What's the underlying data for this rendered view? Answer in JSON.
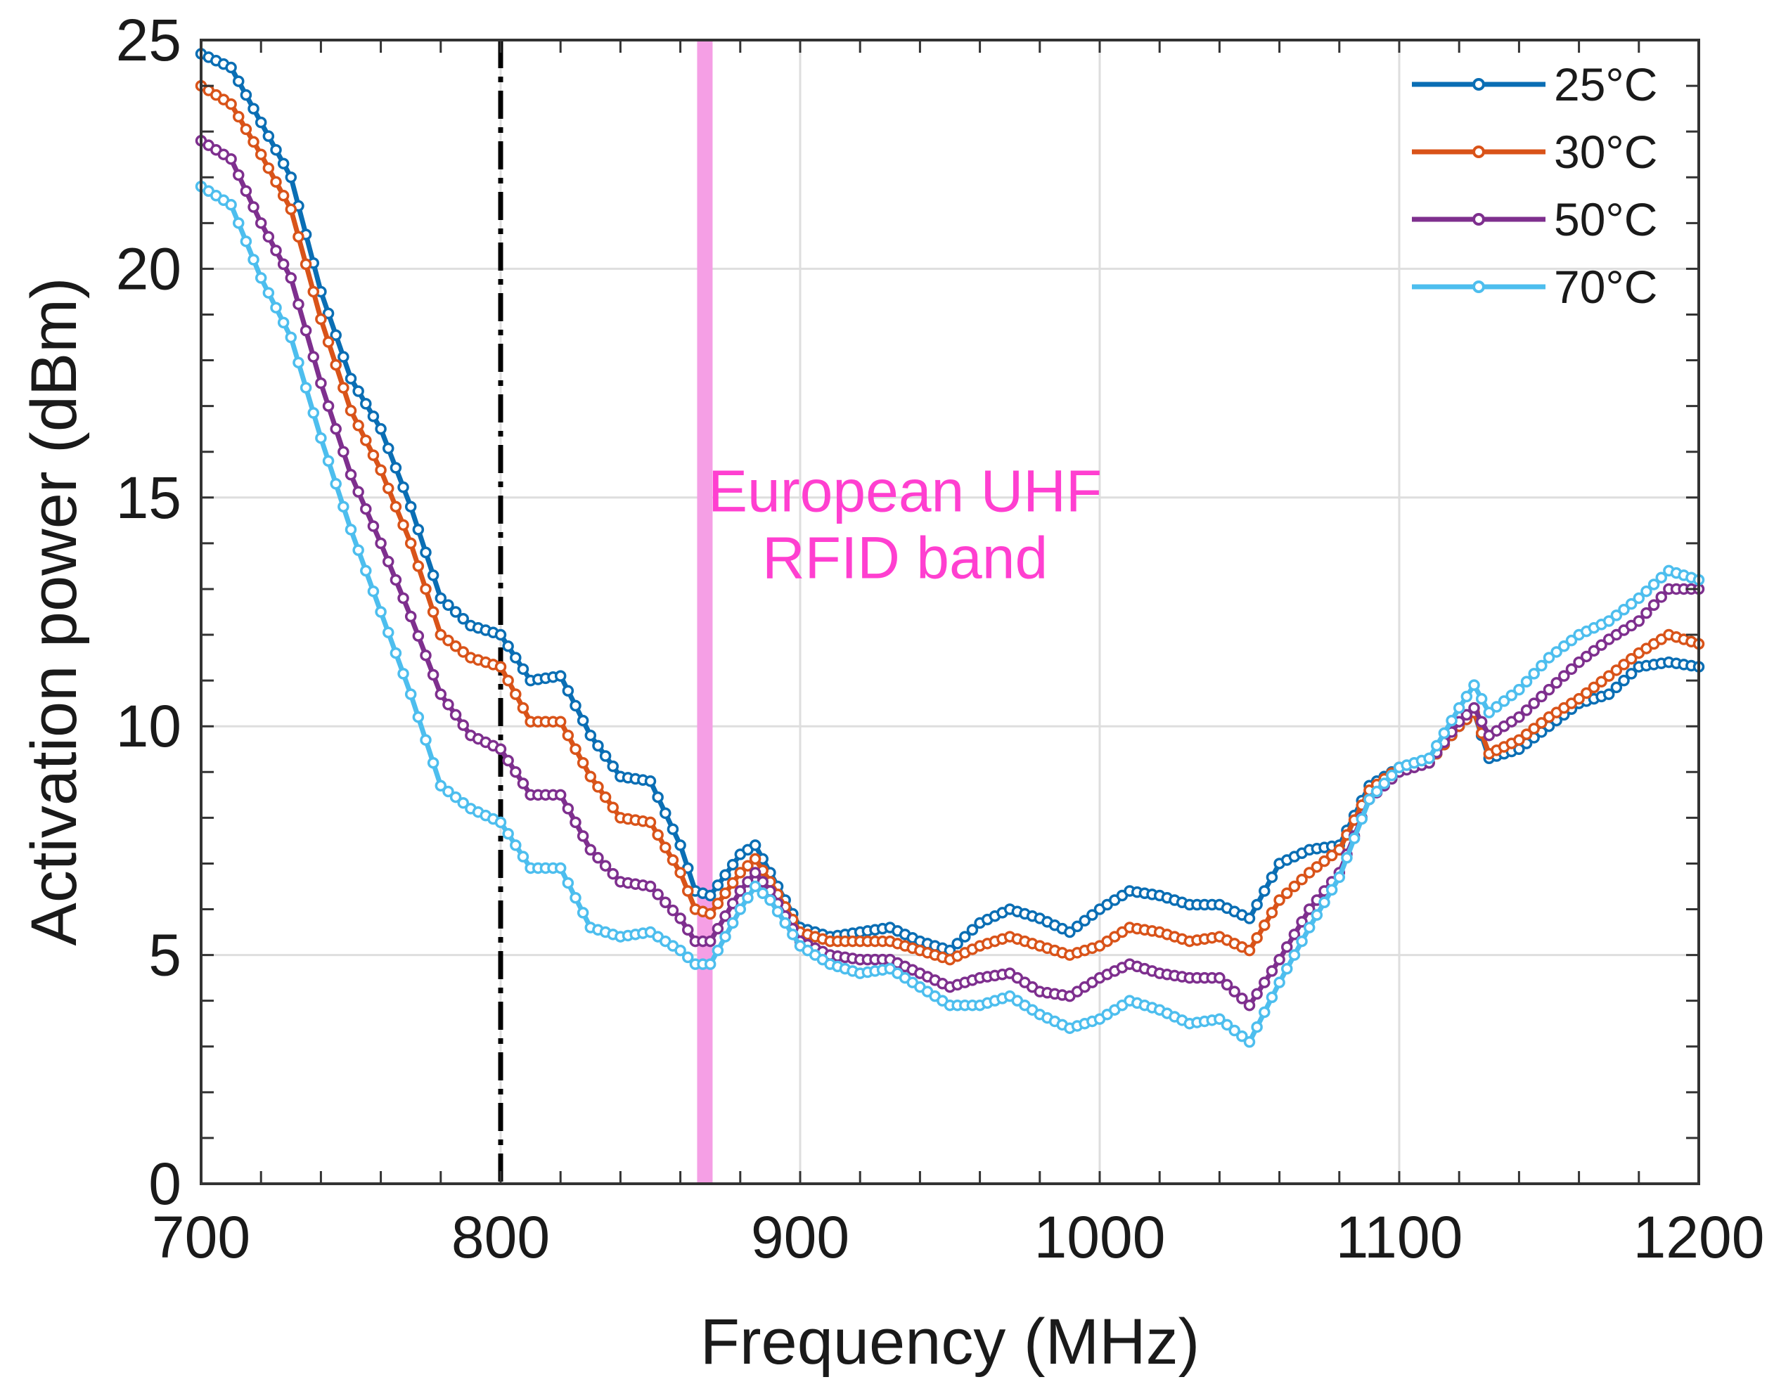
{
  "chart_data": {
    "type": "line",
    "title": "",
    "xlabel": "Frequency (MHz)",
    "ylabel": "Activation power (dBm)",
    "xlim": [
      700,
      1200
    ],
    "ylim": [
      0,
      25
    ],
    "xticks": [
      700,
      800,
      900,
      1000,
      1100,
      1200
    ],
    "yticks": [
      0,
      5,
      10,
      15,
      20,
      25
    ],
    "grid": true,
    "legend_position": "top-right",
    "reference_line": {
      "x": 800,
      "style": "dash-dot",
      "color": "#000000"
    },
    "band": {
      "x_start": 865.6,
      "x_end": 867.6,
      "color": "#f59fe5"
    },
    "annotation": {
      "lines": [
        "European UHF",
        "RFID band"
      ],
      "color": "#ff3fd0",
      "x": 935,
      "y": 14.7
    },
    "series": [
      {
        "name": "25°C",
        "color": "#0a6eb4",
        "x": [
          700,
          710,
          720,
          730,
          740,
          750,
          760,
          770,
          780,
          790,
          800,
          810,
          820,
          830,
          840,
          850,
          860,
          865,
          870,
          880,
          885,
          890,
          900,
          910,
          920,
          930,
          940,
          950,
          960,
          970,
          980,
          990,
          1000,
          1010,
          1020,
          1030,
          1040,
          1050,
          1060,
          1070,
          1080,
          1090,
          1100,
          1110,
          1120,
          1125,
          1130,
          1140,
          1150,
          1160,
          1170,
          1180,
          1190,
          1200
        ],
        "values": [
          24.7,
          24.4,
          23.2,
          22.0,
          19.5,
          17.6,
          16.5,
          14.8,
          12.8,
          12.2,
          12.0,
          11.0,
          11.1,
          9.8,
          8.9,
          8.8,
          7.4,
          6.4,
          6.3,
          7.2,
          7.4,
          6.8,
          5.6,
          5.4,
          5.5,
          5.6,
          5.3,
          5.1,
          5.7,
          6.0,
          5.8,
          5.5,
          6.0,
          6.4,
          6.3,
          6.1,
          6.1,
          5.8,
          7.0,
          7.3,
          7.4,
          8.7,
          9.1,
          9.2,
          10.0,
          10.3,
          9.3,
          9.5,
          10.0,
          10.5,
          10.7,
          11.3,
          11.4,
          11.3
        ]
      },
      {
        "name": "30°C",
        "color": "#d95319",
        "x": [
          700,
          710,
          720,
          730,
          740,
          750,
          760,
          770,
          780,
          790,
          800,
          810,
          820,
          830,
          840,
          850,
          860,
          865,
          870,
          880,
          885,
          890,
          900,
          910,
          920,
          930,
          940,
          950,
          960,
          970,
          980,
          990,
          1000,
          1010,
          1020,
          1030,
          1040,
          1050,
          1060,
          1070,
          1080,
          1090,
          1100,
          1110,
          1120,
          1125,
          1130,
          1140,
          1150,
          1160,
          1170,
          1180,
          1190,
          1200
        ],
        "values": [
          24.0,
          23.6,
          22.5,
          21.3,
          18.9,
          16.9,
          15.6,
          14.0,
          12.0,
          11.5,
          11.3,
          10.1,
          10.1,
          8.9,
          8.0,
          7.9,
          6.8,
          6.0,
          5.9,
          6.8,
          7.1,
          6.6,
          5.5,
          5.3,
          5.3,
          5.3,
          5.1,
          4.9,
          5.2,
          5.4,
          5.2,
          5.0,
          5.2,
          5.6,
          5.5,
          5.3,
          5.4,
          5.1,
          6.2,
          6.8,
          7.3,
          8.6,
          9.1,
          9.2,
          10.0,
          10.3,
          9.4,
          9.7,
          10.2,
          10.6,
          11.1,
          11.6,
          12.0,
          11.8
        ]
      },
      {
        "name": "50°C",
        "color": "#7e2f8e",
        "x": [
          700,
          710,
          720,
          730,
          740,
          750,
          760,
          770,
          780,
          790,
          800,
          810,
          820,
          830,
          840,
          850,
          860,
          865,
          870,
          880,
          885,
          890,
          900,
          910,
          920,
          930,
          940,
          950,
          960,
          970,
          980,
          990,
          1000,
          1010,
          1020,
          1030,
          1040,
          1050,
          1060,
          1070,
          1080,
          1090,
          1100,
          1110,
          1120,
          1125,
          1130,
          1140,
          1150,
          1160,
          1170,
          1180,
          1190,
          1200
        ],
        "values": [
          22.8,
          22.4,
          21.0,
          19.8,
          17.5,
          15.5,
          14.0,
          12.4,
          10.7,
          9.8,
          9.5,
          8.5,
          8.5,
          7.3,
          6.6,
          6.5,
          5.8,
          5.3,
          5.3,
          6.4,
          6.8,
          6.4,
          5.3,
          5.0,
          4.9,
          4.9,
          4.6,
          4.3,
          4.5,
          4.6,
          4.2,
          4.1,
          4.5,
          4.8,
          4.6,
          4.5,
          4.5,
          3.9,
          4.9,
          6.0,
          6.8,
          8.4,
          9.0,
          9.2,
          10.1,
          10.4,
          9.8,
          10.2,
          10.8,
          11.4,
          11.9,
          12.3,
          13.0,
          13.0
        ]
      },
      {
        "name": "70°C",
        "color": "#4dbeee",
        "x": [
          700,
          710,
          720,
          730,
          740,
          750,
          760,
          770,
          780,
          790,
          800,
          810,
          820,
          830,
          840,
          850,
          860,
          865,
          870,
          880,
          885,
          890,
          900,
          910,
          920,
          930,
          940,
          950,
          960,
          970,
          980,
          990,
          1000,
          1010,
          1020,
          1030,
          1040,
          1050,
          1060,
          1070,
          1080,
          1090,
          1100,
          1110,
          1120,
          1125,
          1130,
          1140,
          1150,
          1160,
          1170,
          1180,
          1190,
          1200
        ],
        "values": [
          21.8,
          21.4,
          19.8,
          18.5,
          16.3,
          14.3,
          12.5,
          10.7,
          8.7,
          8.2,
          7.9,
          6.9,
          6.9,
          5.6,
          5.4,
          5.5,
          5.1,
          4.8,
          4.8,
          6.0,
          6.5,
          6.2,
          5.2,
          4.8,
          4.6,
          4.7,
          4.3,
          3.9,
          3.9,
          4.1,
          3.7,
          3.4,
          3.6,
          4.0,
          3.8,
          3.5,
          3.6,
          3.1,
          4.4,
          5.6,
          6.7,
          8.4,
          9.1,
          9.3,
          10.4,
          10.9,
          10.3,
          10.8,
          11.5,
          12.0,
          12.3,
          12.8,
          13.4,
          13.2
        ]
      }
    ]
  }
}
